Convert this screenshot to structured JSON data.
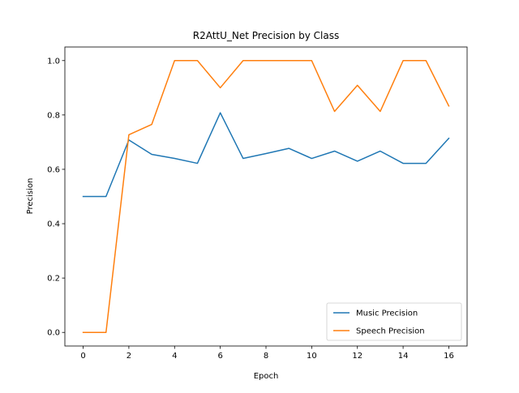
{
  "chart_data": {
    "type": "line",
    "title": "R2AttU_Net Precision by Class",
    "xlabel": "Epoch",
    "ylabel": "Precision",
    "xlim": [
      -0.8,
      16.8
    ],
    "ylim": [
      -0.05,
      1.05
    ],
    "xticks": [
      0,
      2,
      4,
      6,
      8,
      10,
      12,
      14,
      16
    ],
    "yticks": [
      0.0,
      0.2,
      0.4,
      0.6,
      0.8,
      1.0
    ],
    "xtick_labels": [
      "0",
      "2",
      "4",
      "6",
      "8",
      "10",
      "12",
      "14",
      "16"
    ],
    "ytick_labels": [
      "0.0",
      "0.2",
      "0.4",
      "0.6",
      "0.8",
      "1.0"
    ],
    "grid": false,
    "legend_position": "lower-right",
    "x": [
      0,
      1,
      2,
      3,
      4,
      5,
      6,
      7,
      8,
      9,
      10,
      11,
      12,
      13,
      14,
      15,
      16
    ],
    "series": [
      {
        "name": "Music Precision",
        "color": "#1f77b4",
        "values": [
          0.5,
          0.5,
          0.708,
          0.655,
          0.64,
          0.622,
          0.808,
          0.64,
          0.658,
          0.677,
          0.64,
          0.667,
          0.63,
          0.667,
          0.622,
          0.622,
          0.714
        ]
      },
      {
        "name": "Speech Precision",
        "color": "#ff7f0e",
        "values": [
          0.0,
          0.0,
          0.727,
          0.765,
          1.0,
          1.0,
          0.9,
          1.0,
          1.0,
          1.0,
          1.0,
          0.813,
          0.909,
          0.813,
          1.0,
          1.0,
          0.833
        ]
      }
    ]
  }
}
